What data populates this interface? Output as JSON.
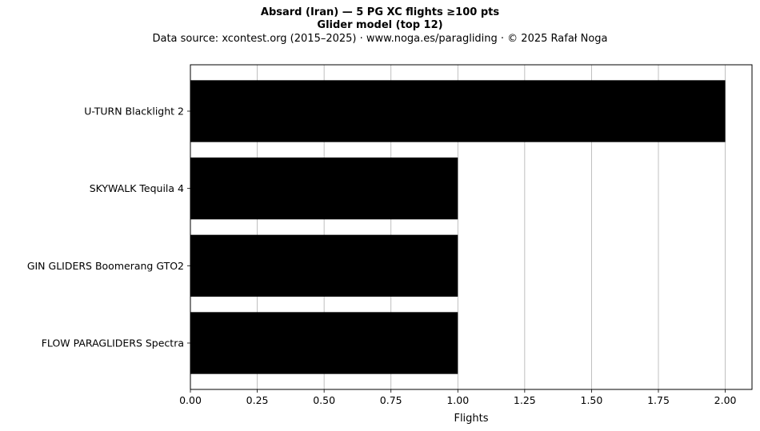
{
  "chart_data": {
    "type": "bar",
    "orientation": "horizontal",
    "title": "Absard (Iran)  —  5 PG XC flights ≥100 pts",
    "subtitle": "Glider model (top 12)",
    "source": "Data source: xcontest.org (2015–2025)  ·  www.noga.es/paragliding  ·  © 2025 Rafał Noga",
    "categories": [
      "U-TURN Blacklight 2",
      "SKYWALK Tequila 4",
      "GIN GLIDERS Boomerang GTO2",
      "FLOW PARAGLIDERS Spectra"
    ],
    "values": [
      2,
      1,
      1,
      1
    ],
    "xlabel": "Flights",
    "ylabel": "",
    "xlim": [
      0,
      2.1
    ],
    "xticks": [
      0,
      0.25,
      0.5,
      0.75,
      1.0,
      1.25,
      1.5,
      1.75,
      2.0
    ],
    "xtick_labels": [
      "0.00",
      "0.25",
      "0.50",
      "0.75",
      "1.00",
      "1.25",
      "1.50",
      "1.75",
      "2.00"
    ],
    "grid": "x",
    "bar_color": "#000000",
    "grid_color": "#b0b0b0"
  }
}
